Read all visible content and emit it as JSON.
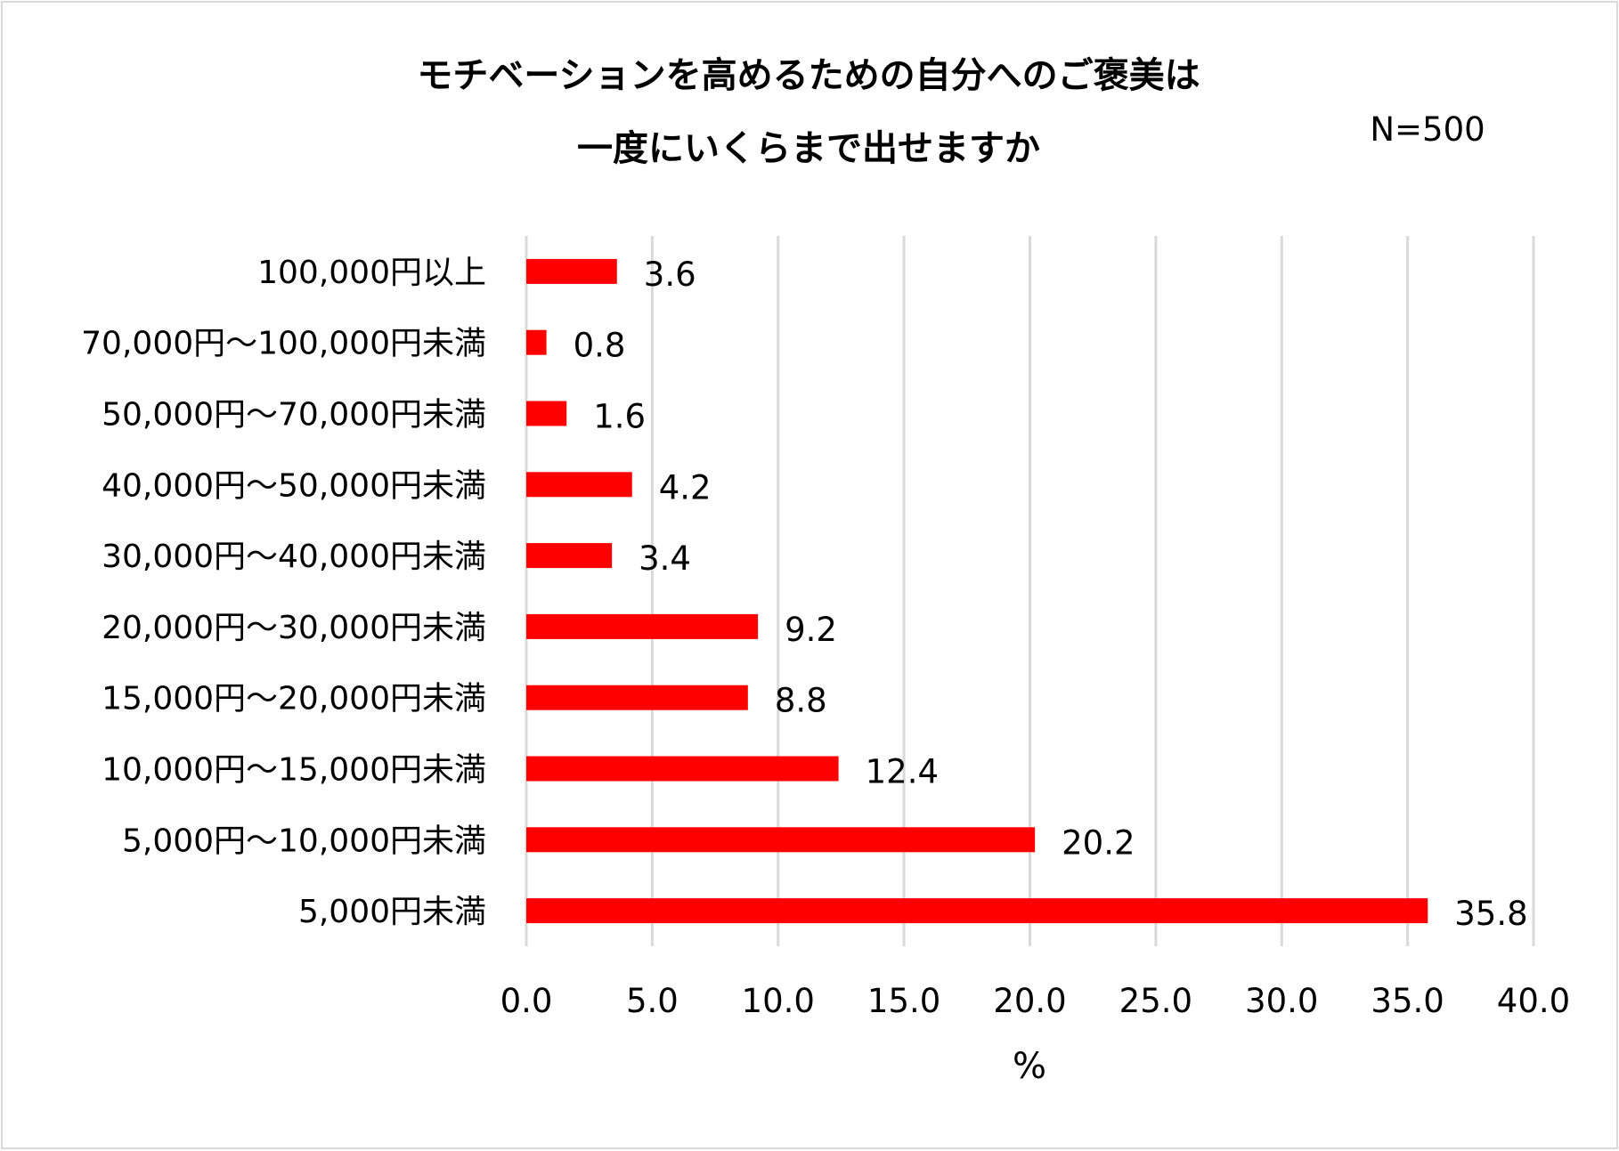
{
  "chart_data": {
    "type": "bar",
    "orientation": "horizontal",
    "title": [
      "モチベーションを高めるための自分へのご褒美は",
      "一度にいくらまで出せますか"
    ],
    "annotation": "N=500",
    "xlabel": "%",
    "ylabel": "",
    "xlim": [
      0,
      40
    ],
    "xticks": [
      "0.0",
      "5.0",
      "10.0",
      "15.0",
      "20.0",
      "25.0",
      "30.0",
      "35.0",
      "40.0"
    ],
    "grid": true,
    "legend": "none",
    "bar_color": "#ff0000",
    "grid_color": "#d9d9d9",
    "categories": [
      "100,000円以上",
      "70,000円～100,000円未満",
      "50,000円～70,000円未満",
      "40,000円～50,000円未満",
      "30,000円～40,000円未満",
      "20,000円～30,000円未満",
      "15,000円～20,000円未満",
      "10,000円～15,000円未満",
      "5,000円～10,000円未満",
      "5,000円未満"
    ],
    "values": [
      3.6,
      0.8,
      1.6,
      4.2,
      3.4,
      9.2,
      8.8,
      12.4,
      20.2,
      35.8
    ],
    "data_labels": [
      "3.6",
      "0.8",
      "1.6",
      "4.2",
      "3.4",
      "9.2",
      "8.8",
      "12.4",
      "20.2",
      "35.8"
    ]
  }
}
